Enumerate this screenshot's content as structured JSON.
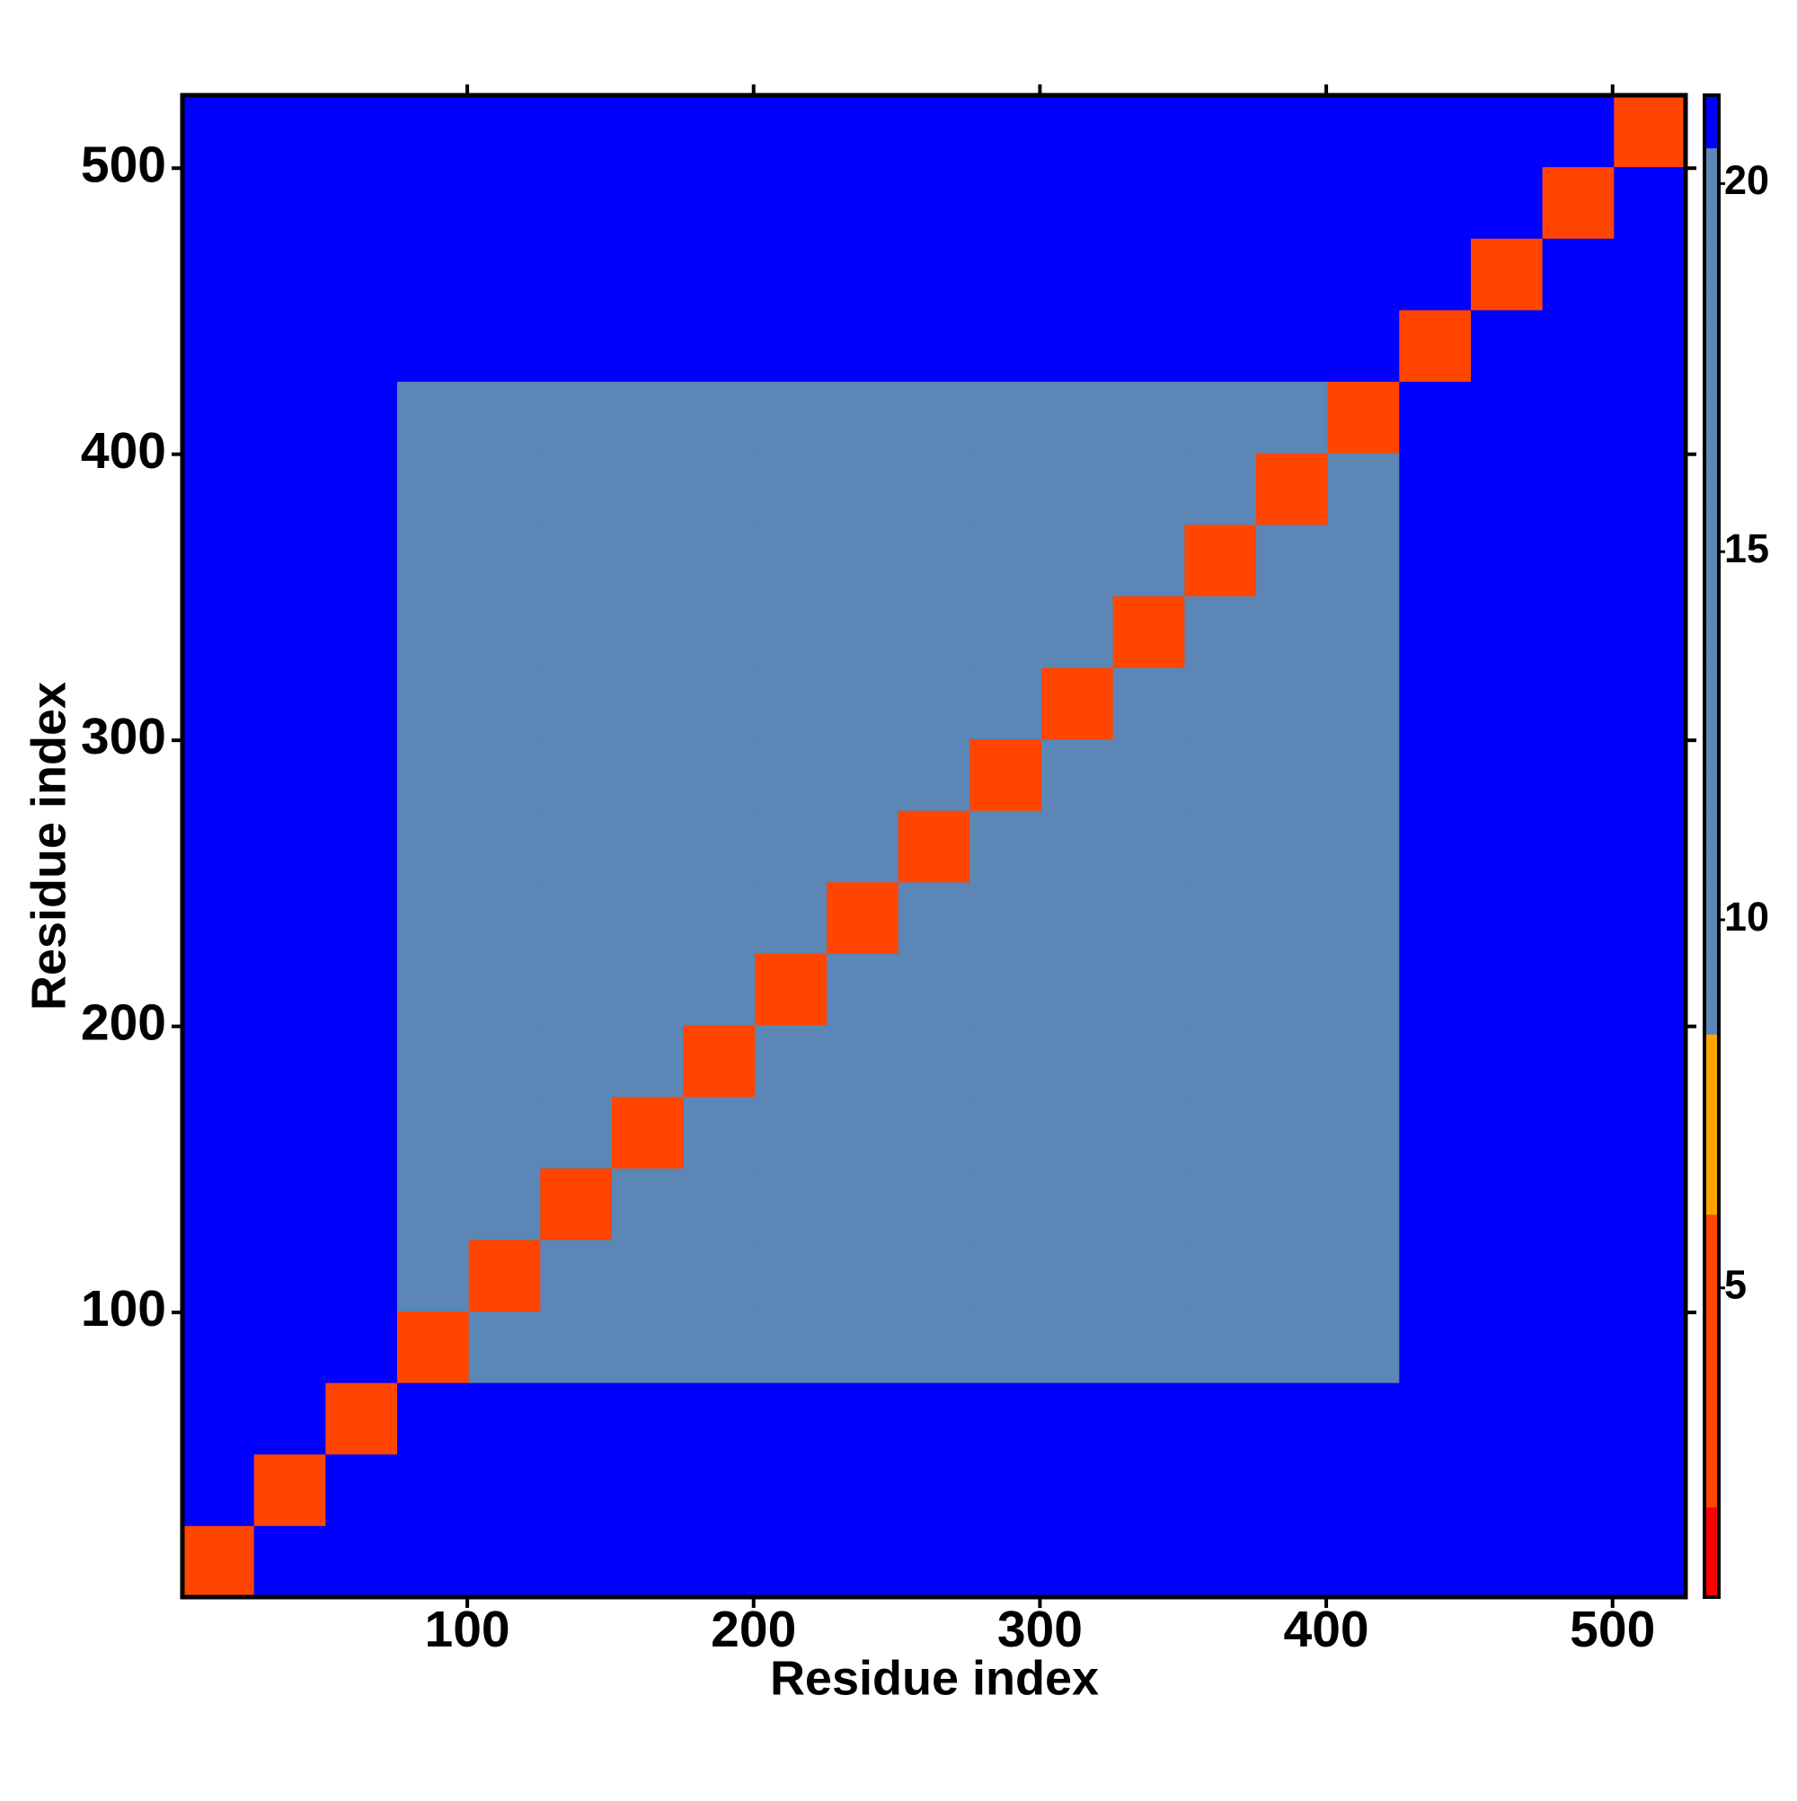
{
  "chart_data": {
    "type": "heatmap",
    "x_label": "Residue index",
    "y_label": "Residue index",
    "xlim": [
      0.5,
      525.5
    ],
    "ylim": [
      0.5,
      525.5
    ],
    "xticks": [
      100,
      200,
      300,
      400,
      500
    ],
    "yticks": [
      100,
      200,
      300,
      400,
      500
    ],
    "x_bins": [
      0.5,
      25.5,
      50.5,
      75.5,
      100.5,
      125.5,
      150.5,
      175.5,
      200.5,
      225.5,
      250.5,
      275.5,
      300.5,
      325.5,
      350.5,
      375.5,
      400.5,
      425.5,
      450.5,
      475.5,
      500.5,
      525.5
    ],
    "y_bins": [
      0.5,
      25.5,
      50.5,
      75.5,
      100.5,
      125.5,
      150.5,
      175.5,
      200.5,
      225.5,
      250.5,
      275.5,
      300.5,
      325.5,
      350.5,
      375.5,
      400.5,
      425.5,
      450.5,
      475.5,
      500.5,
      525.5
    ],
    "z": [
      [
        6,
        21,
        21,
        21,
        21,
        21,
        21,
        21,
        21,
        21,
        21,
        21,
        21,
        21,
        21,
        21,
        21,
        21,
        21,
        21,
        21
      ],
      [
        21,
        6,
        21,
        21,
        21,
        21,
        21,
        21,
        21,
        21,
        21,
        21,
        21,
        21,
        21,
        21,
        21,
        21,
        21,
        21,
        21
      ],
      [
        21,
        21,
        6,
        21,
        21,
        21,
        21,
        21,
        21,
        21,
        21,
        21,
        21,
        21,
        21,
        21,
        21,
        21,
        21,
        21,
        21
      ],
      [
        21,
        21,
        21,
        6,
        12,
        17,
        17,
        17,
        17,
        17,
        17,
        17,
        17,
        17,
        17,
        17,
        17,
        21,
        21,
        21,
        21
      ],
      [
        21,
        21,
        21,
        12,
        6,
        12,
        15,
        15,
        15,
        15,
        15,
        15,
        15,
        15,
        15,
        15,
        17,
        21,
        21,
        21,
        21
      ],
      [
        21,
        21,
        21,
        17,
        12,
        6,
        12,
        15,
        15,
        15,
        15,
        15,
        15,
        15,
        15,
        15,
        17,
        21,
        21,
        21,
        21
      ],
      [
        21,
        21,
        21,
        17,
        15,
        12,
        6,
        12,
        15,
        15,
        15,
        15,
        15,
        15,
        15,
        15,
        17,
        21,
        21,
        21,
        21
      ],
      [
        21,
        21,
        21,
        17,
        15,
        15,
        12,
        6,
        12,
        15,
        15,
        15,
        15,
        15,
        15,
        15,
        17,
        21,
        21,
        21,
        21
      ],
      [
        21,
        21,
        21,
        17,
        15,
        15,
        15,
        12,
        6,
        12,
        15,
        15,
        15,
        15,
        15,
        15,
        17,
        21,
        21,
        21,
        21
      ],
      [
        21,
        21,
        21,
        17,
        15,
        15,
        15,
        15,
        12,
        6,
        12,
        15,
        15,
        15,
        15,
        15,
        17,
        21,
        21,
        21,
        21
      ],
      [
        21,
        21,
        21,
        17,
        15,
        15,
        15,
        15,
        15,
        12,
        6,
        12,
        15,
        15,
        15,
        15,
        17,
        21,
        21,
        21,
        21
      ],
      [
        21,
        21,
        21,
        17,
        15,
        15,
        15,
        15,
        15,
        15,
        12,
        6,
        12,
        15,
        15,
        15,
        17,
        21,
        21,
        21,
        21
      ],
      [
        21,
        21,
        21,
        17,
        15,
        15,
        15,
        15,
        15,
        15,
        15,
        12,
        6,
        12,
        15,
        15,
        17,
        21,
        21,
        21,
        21
      ],
      [
        21,
        21,
        21,
        17,
        15,
        15,
        15,
        15,
        15,
        15,
        15,
        15,
        12,
        6,
        12,
        15,
        17,
        21,
        21,
        21,
        21
      ],
      [
        21,
        21,
        21,
        17,
        15,
        15,
        15,
        15,
        15,
        15,
        15,
        15,
        15,
        12,
        6,
        12,
        17,
        21,
        21,
        21,
        21
      ],
      [
        21,
        21,
        21,
        17,
        15,
        15,
        15,
        15,
        15,
        15,
        15,
        15,
        15,
        15,
        12,
        6,
        12,
        21,
        21,
        21,
        21
      ],
      [
        21,
        21,
        21,
        17,
        17,
        17,
        17,
        17,
        17,
        17,
        17,
        17,
        17,
        17,
        17,
        12,
        6,
        21,
        21,
        21,
        21
      ],
      [
        21,
        21,
        21,
        21,
        21,
        21,
        21,
        21,
        21,
        21,
        21,
        21,
        21,
        21,
        21,
        21,
        21,
        6,
        21,
        21,
        21
      ],
      [
        21,
        21,
        21,
        21,
        21,
        21,
        21,
        21,
        21,
        21,
        21,
        21,
        21,
        21,
        21,
        21,
        21,
        21,
        6,
        21,
        21
      ],
      [
        21,
        21,
        21,
        21,
        21,
        21,
        21,
        21,
        21,
        21,
        21,
        21,
        21,
        21,
        21,
        21,
        21,
        21,
        21,
        6,
        21
      ],
      [
        21,
        21,
        21,
        21,
        21,
        21,
        21,
        21,
        21,
        21,
        21,
        21,
        21,
        21,
        21,
        21,
        21,
        21,
        21,
        21,
        6
      ]
    ],
    "zlim": [
      0.8,
      21.2
    ],
    "zticks": [
      5,
      10,
      15,
      20
    ],
    "colorscale": [
      [
        2,
        "#ff0000"
      ],
      [
        6,
        "#ff4500"
      ],
      [
        8.4,
        "#ffa500"
      ],
      [
        20.5,
        "#5b86b5"
      ],
      [
        21.2,
        "#0000ff"
      ]
    ]
  }
}
